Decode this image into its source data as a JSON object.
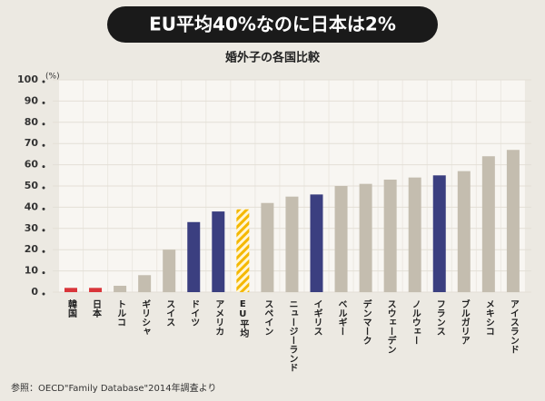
{
  "chart_data": {
    "type": "bar",
    "title": "EU平均40%なのに日本は2%",
    "subtitle": "婚外子の各国比較",
    "y_unit": "(%)",
    "source": "参照：OECD\"Family Database\"2014年調査より",
    "categories": [
      "韓国",
      "日本",
      "トルコ",
      "ギリシャ",
      "スイス",
      "ドイツ",
      "アメリカ",
      "EU平均",
      "スペイン",
      "ニュージーランド",
      "イギリス",
      "ベルギー",
      "デンマーク",
      "スウェーデン",
      "ノルウェー",
      "フランス",
      "ブルガリア",
      "メキシコ",
      "アイスランド"
    ],
    "values": [
      2,
      2,
      3,
      8,
      20,
      33,
      38,
      39,
      42,
      45,
      46,
      50,
      51,
      53,
      54,
      55,
      57,
      64,
      67
    ],
    "colors": [
      "#d9353a",
      "#d9353a",
      "#c4bdaf",
      "#c4bdaf",
      "#c4bdaf",
      "#3b3f80",
      "#3b3f80",
      "#f5b800",
      "#c4bdaf",
      "#c4bdaf",
      "#3b3f80",
      "#c4bdaf",
      "#c4bdaf",
      "#c4bdaf",
      "#c4bdaf",
      "#3b3f80",
      "#c4bdaf",
      "#c4bdaf",
      "#c4bdaf"
    ],
    "hatched_index": 7,
    "ylim": [
      0,
      100
    ],
    "yticks": [
      0,
      10,
      20,
      30,
      40,
      50,
      60,
      70,
      80,
      90,
      100
    ],
    "grid": true
  }
}
